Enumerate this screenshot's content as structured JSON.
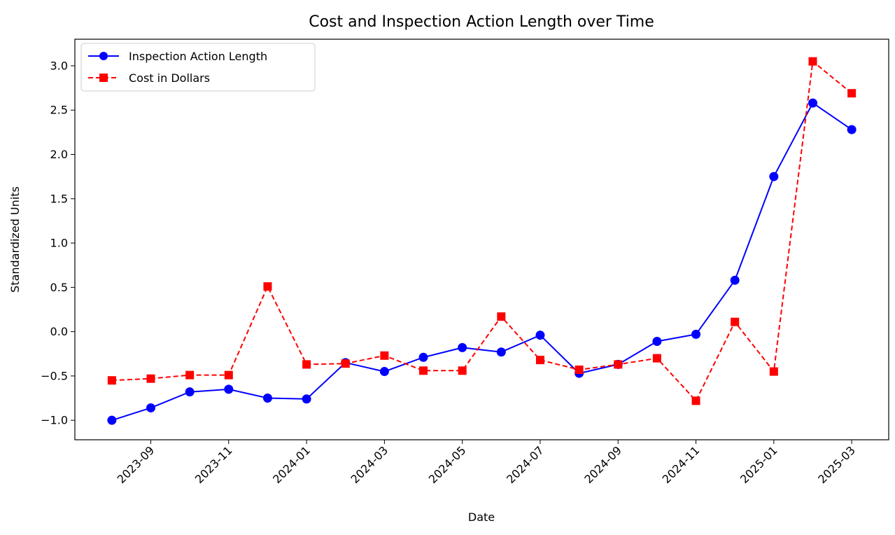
{
  "chart_data": {
    "type": "line",
    "title": "Cost and Inspection Action Length over Time",
    "xlabel": "Date",
    "ylabel": "Standardized Units",
    "x": [
      "2023-08",
      "2023-09",
      "2023-10",
      "2023-11",
      "2023-12",
      "2024-01",
      "2024-02",
      "2024-03",
      "2024-04",
      "2024-05",
      "2024-06",
      "2024-07",
      "2024-08",
      "2024-09",
      "2024-10",
      "2024-11",
      "2024-12",
      "2025-01",
      "2025-02",
      "2025-03"
    ],
    "x_ticks": [
      "2023-09",
      "2023-11",
      "2024-01",
      "2024-03",
      "2024-05",
      "2024-07",
      "2024-09",
      "2024-11",
      "2025-01",
      "2025-03"
    ],
    "y_ticks": [
      "−1.0",
      "−0.5",
      "0.0",
      "0.5",
      "1.0",
      "1.5",
      "2.0",
      "2.5",
      "3.0"
    ],
    "ylim": [
      -1.22,
      3.3
    ],
    "grid": false,
    "legend_position": "top-left",
    "series": [
      {
        "name": "Inspection Action Length",
        "color": "#0000ff",
        "line_style": "solid",
        "marker": "circle",
        "values": [
          -1.0,
          -0.86,
          -0.68,
          -0.65,
          -0.75,
          -0.76,
          -0.35,
          -0.45,
          -0.29,
          -0.18,
          -0.23,
          -0.04,
          -0.47,
          -0.37,
          -0.11,
          -0.03,
          0.58,
          1.75,
          2.58,
          2.28
        ]
      },
      {
        "name": "Cost in Dollars",
        "color": "#ff0000",
        "line_style": "dashed",
        "marker": "square",
        "values": [
          -0.55,
          -0.53,
          -0.49,
          -0.49,
          0.51,
          -0.37,
          -0.36,
          -0.27,
          -0.44,
          -0.44,
          0.17,
          -0.32,
          -0.43,
          -0.37,
          -0.3,
          -0.78,
          0.11,
          -0.45,
          3.05,
          2.69
        ]
      }
    ]
  }
}
